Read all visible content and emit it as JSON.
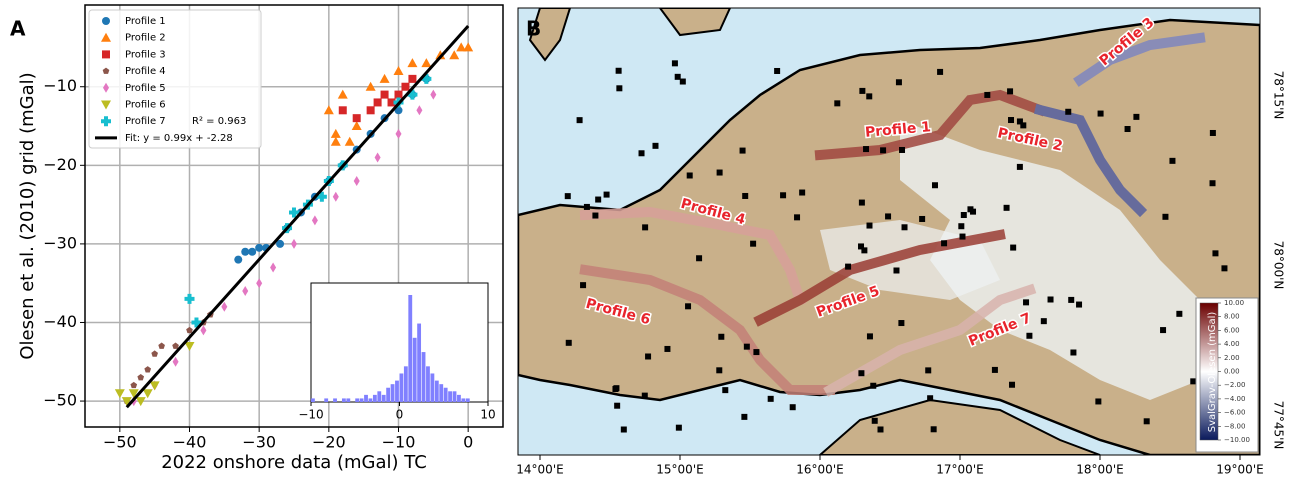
{
  "chart_data": [
    {
      "type": "scatter",
      "panel_label": "A",
      "x_label": "2022 onshore data (mGal) TC",
      "y_label": "Olesen et al. (2010) grid (mGal)",
      "xlim": [
        -55,
        5
      ],
      "ylim": [
        -53.3,
        0.4
      ],
      "grid": true,
      "legend": "upper left",
      "xticks": [
        {
          "value": -50,
          "label": "−50"
        },
        {
          "value": -40,
          "label": "−40"
        },
        {
          "value": -30,
          "label": "−30"
        },
        {
          "value": -20,
          "label": "−20"
        },
        {
          "value": -10,
          "label": "−10"
        },
        0
      ],
      "yticks": [
        {
          "value": -10,
          "label": "−10"
        },
        {
          "value": -20,
          "label": "−20"
        },
        {
          "value": -30,
          "label": "−30"
        },
        {
          "value": -40,
          "label": "−40"
        },
        {
          "value": -50,
          "label": "−50"
        }
      ],
      "annotation": "R² = 0.963",
      "series": [
        {
          "name": "Profile 1",
          "color": "#1f77b4",
          "marker": "circle",
          "x": [
            -33,
            -32,
            -31,
            -30,
            -29,
            -27,
            -26,
            -24,
            -22,
            -20,
            -18,
            -16,
            -14,
            -12,
            -10,
            -8,
            -6
          ],
          "values": [
            -32,
            -31,
            -31,
            -30.5,
            -30.5,
            -30,
            -28,
            -26,
            -24,
            -22,
            -20,
            -18,
            -16,
            -14,
            -13,
            -11,
            -9
          ]
        },
        {
          "name": "Profile 2",
          "color": "#ff7f0e",
          "marker": "triangle",
          "x": [
            -20,
            -19,
            -18,
            -16,
            -14,
            -12,
            -10,
            -8,
            -6,
            -4,
            -2,
            -1,
            0,
            -19,
            -17
          ],
          "values": [
            -13,
            -16,
            -11,
            -15,
            -10,
            -9,
            -8,
            -7,
            -7,
            -6,
            -6,
            -5,
            -5,
            -17,
            -17
          ]
        },
        {
          "name": "Profile 3",
          "color": "#d62728",
          "marker": "square",
          "x": [
            -18,
            -16,
            -14,
            -13,
            -12,
            -11,
            -10,
            -9,
            -8
          ],
          "values": [
            -13,
            -14,
            -13,
            -12,
            -11,
            -12,
            -11,
            -10,
            -9
          ]
        },
        {
          "name": "Profile 4",
          "color": "#8c564b",
          "marker": "pentagon",
          "x": [
            -49,
            -48,
            -47,
            -46,
            -45,
            -44,
            -42,
            -40,
            -38,
            -37
          ],
          "values": [
            -50,
            -48,
            -47,
            -46,
            -44,
            -43,
            -43,
            -41,
            -40,
            -39
          ]
        },
        {
          "name": "Profile 5",
          "color": "#e377c2",
          "marker": "diamond",
          "x": [
            -48,
            -45,
            -42,
            -38,
            -35,
            -32,
            -30,
            -28,
            -25,
            -22,
            -19,
            -16,
            -13,
            -10,
            -7,
            -5
          ],
          "values": [
            -50,
            -48,
            -45,
            -41,
            -38,
            -36,
            -35,
            -33,
            -30,
            -27,
            -24,
            -22,
            -19,
            -16,
            -13,
            -11
          ]
        },
        {
          "name": "Profile 6",
          "color": "#bcbd22",
          "marker": "triangle-down",
          "x": [
            -50,
            -49,
            -48,
            -47,
            -46,
            -45,
            -40
          ],
          "values": [
            -49,
            -50,
            -49,
            -50,
            -49,
            -48,
            -43
          ]
        },
        {
          "name": "Profile 7",
          "color": "#17becf",
          "marker": "plus",
          "x": [
            -40,
            -39,
            -26,
            -25,
            -23,
            -21,
            -20,
            -18,
            -10,
            -8,
            -6
          ],
          "values": [
            -37,
            -40,
            -28,
            -26,
            -25,
            -24,
            -22,
            -20,
            -12,
            -11,
            -9
          ]
        },
        {
          "name": "Fit: y = 0.99x + -2.28",
          "color": "#000000",
          "marker": "line",
          "x": [
            -49,
            0
          ],
          "values": [
            -50.79,
            -2.28
          ]
        }
      ]
    },
    {
      "type": "histogram",
      "color": "#8080ff",
      "xlim": [
        -10,
        10
      ],
      "xticks": [
        {
          "value": -10,
          "label": "−10"
        },
        0,
        10
      ],
      "bins": [
        -10,
        -9.5,
        -9,
        -8.5,
        -8,
        -7.5,
        -7,
        -6.5,
        -6,
        -5.5,
        -5,
        -4.5,
        -4,
        -3.5,
        -3,
        -2.5,
        -2,
        -1.5,
        -1,
        -0.5,
        0,
        0.5,
        1,
        1.5,
        2,
        2.5,
        3,
        3.5,
        4,
        4.5,
        5,
        5.5,
        6,
        6.5,
        7,
        7.5,
        8
      ],
      "values": [
        1,
        0,
        0,
        1,
        0,
        1,
        0,
        1,
        1,
        0,
        1,
        1,
        2,
        1,
        2,
        3,
        2,
        4,
        5,
        6,
        8,
        10,
        30,
        18,
        22,
        14,
        10,
        8,
        6,
        5,
        4,
        3,
        3,
        2,
        1,
        1
      ]
    }
  ],
  "map": {
    "panel_label": "B",
    "profiles": [
      "Profile 1",
      "Profile 2",
      "Profile 3",
      "Profile 4",
      "Profile 5",
      "Profile 6",
      "Profile 7"
    ],
    "longitudes": [
      "14°00'E",
      "15°00'E",
      "16°00'E",
      "17°00'E",
      "18°00'E",
      "19°00'E"
    ],
    "latitudes": [
      "78°15'N",
      "78°00'N",
      "77°45'N"
    ],
    "colorbar": {
      "label": "SvalGrav-Olesen (mGal)",
      "range": [
        -10,
        10
      ],
      "ticks": [
        {
          "value": 10,
          "label": "10.00"
        },
        {
          "value": 8,
          "label": "8.00"
        },
        {
          "value": 6,
          "label": "6.00"
        },
        {
          "value": 4,
          "label": "4.00"
        },
        {
          "value": 2,
          "label": "2.00"
        },
        {
          "value": 0,
          "label": "0.00"
        },
        {
          "value": -2,
          "label": "−2.00"
        },
        {
          "value": -4,
          "label": "−4.00"
        },
        {
          "value": -6,
          "label": "−6.00"
        },
        {
          "value": -8,
          "label": "−8.00"
        },
        {
          "value": -10,
          "label": "−10.00"
        }
      ]
    }
  }
}
